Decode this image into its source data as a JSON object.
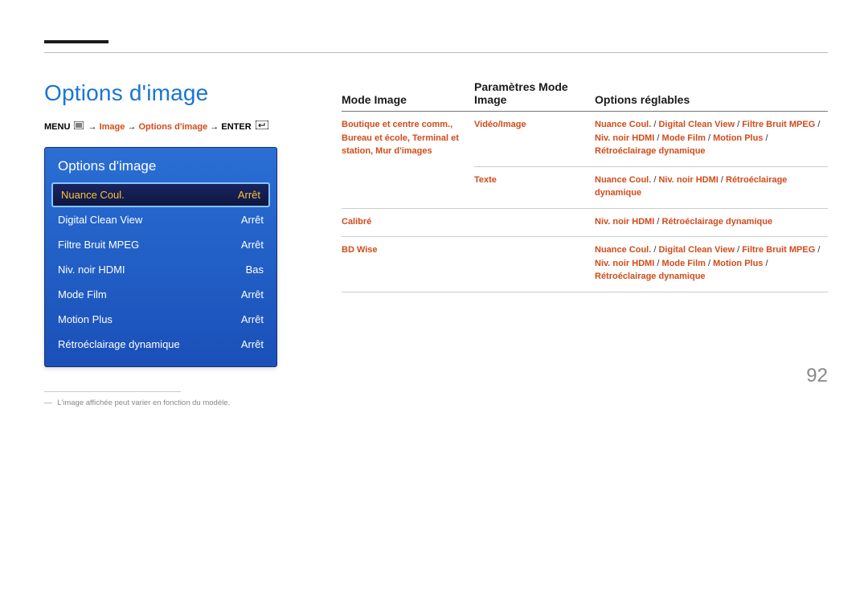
{
  "page": {
    "title": "Options d'image",
    "number": "92",
    "footnote": "L'image affichée peut varier en fonction du modèle."
  },
  "breadcrumb": {
    "parts": [
      "MENU",
      "Image",
      "Options d'image",
      "ENTER"
    ]
  },
  "menu": {
    "title": "Options d'image",
    "rows": [
      {
        "label": "Nuance Coul.",
        "value": "Arrêt",
        "selected": true
      },
      {
        "label": "Digital Clean View",
        "value": "Arrêt",
        "selected": false
      },
      {
        "label": "Filtre Bruit MPEG",
        "value": "Arrêt",
        "selected": false
      },
      {
        "label": "Niv. noir HDMI",
        "value": "Bas",
        "selected": false
      },
      {
        "label": "Mode Film",
        "value": "Arrêt",
        "selected": false
      },
      {
        "label": "Motion Plus",
        "value": "Arrêt",
        "selected": false
      },
      {
        "label": "Rétroéclairage dynamique",
        "value": "Arrêt",
        "selected": false
      }
    ]
  },
  "table": {
    "headers": [
      "Mode Image",
      "Paramètres Mode Image",
      "Options réglables"
    ],
    "rows": [
      {
        "col1_lines": [
          "Boutique et centre comm.,",
          "Bureau et école, Terminal et",
          "station, Mur d'images"
        ],
        "col2": "Vidéo/Image",
        "col3_items": [
          "Nuance Coul.",
          "Digital Clean View",
          "Filtre Bruit MPEG",
          "Niv. noir HDMI",
          "Mode Film",
          "Motion Plus",
          "Rétroéclairage dynamique"
        ],
        "has_col1": true,
        "sub": {
          "col2": "Texte",
          "col3_items": [
            "Nuance Coul.",
            "Niv. noir HDMI",
            "Rétroéclairage dynamique"
          ]
        }
      },
      {
        "col1_lines": [
          "Calibré"
        ],
        "col2": "",
        "col3_items": [
          "Niv. noir HDMI",
          "Rétroéclairage dynamique"
        ],
        "has_col1": true
      },
      {
        "col1_lines": [
          "BD Wise"
        ],
        "col2": "",
        "col3_items": [
          "Nuance Coul.",
          "Digital Clean View",
          "Filtre Bruit MPEG",
          "Niv. noir HDMI",
          "Mode Film",
          "Motion Plus",
          "Rétroéclairage dynamique"
        ],
        "has_col1": true
      }
    ]
  },
  "colors": {
    "accent_orange": "#d14b1a",
    "title_blue": "#1a75d2",
    "panel_blue_top": "#2a6fd4",
    "panel_blue_bottom": "#1a50b8",
    "selected_gold": "#f7c23e"
  }
}
